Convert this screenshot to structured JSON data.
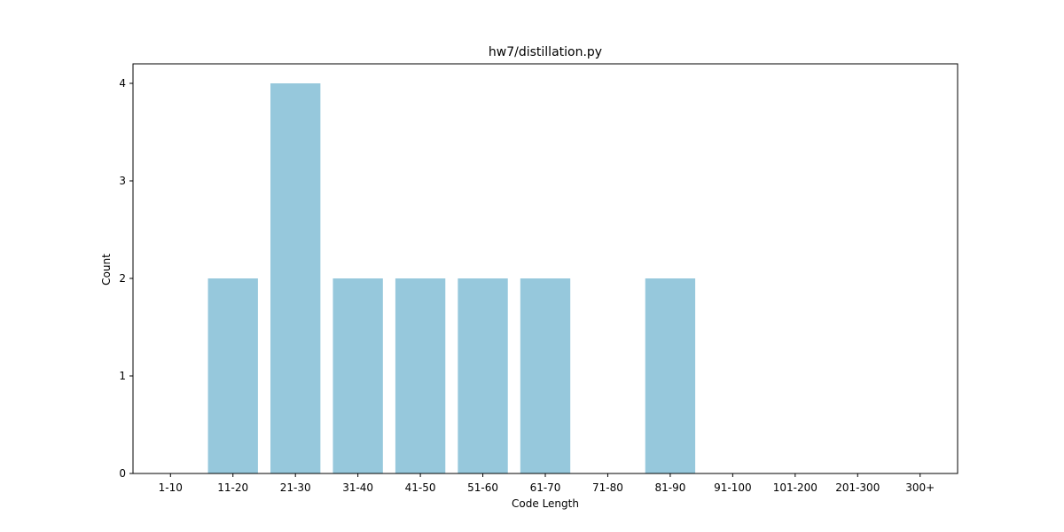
{
  "chart_data": {
    "type": "bar",
    "title": "hw7/distillation.py",
    "xlabel": "Code Length",
    "ylabel": "Count",
    "categories": [
      "1-10",
      "11-20",
      "21-30",
      "31-40",
      "41-50",
      "51-60",
      "61-70",
      "71-80",
      "81-90",
      "91-100",
      "101-200",
      "201-300",
      "300+"
    ],
    "values": [
      0,
      2,
      4,
      2,
      2,
      2,
      2,
      0,
      2,
      0,
      0,
      0,
      0
    ],
    "ylim": [
      0,
      4.2
    ],
    "yticks": [
      0,
      1,
      2,
      3,
      4
    ],
    "bar_color": "#96c8dc",
    "grid": false,
    "legend": "none"
  }
}
